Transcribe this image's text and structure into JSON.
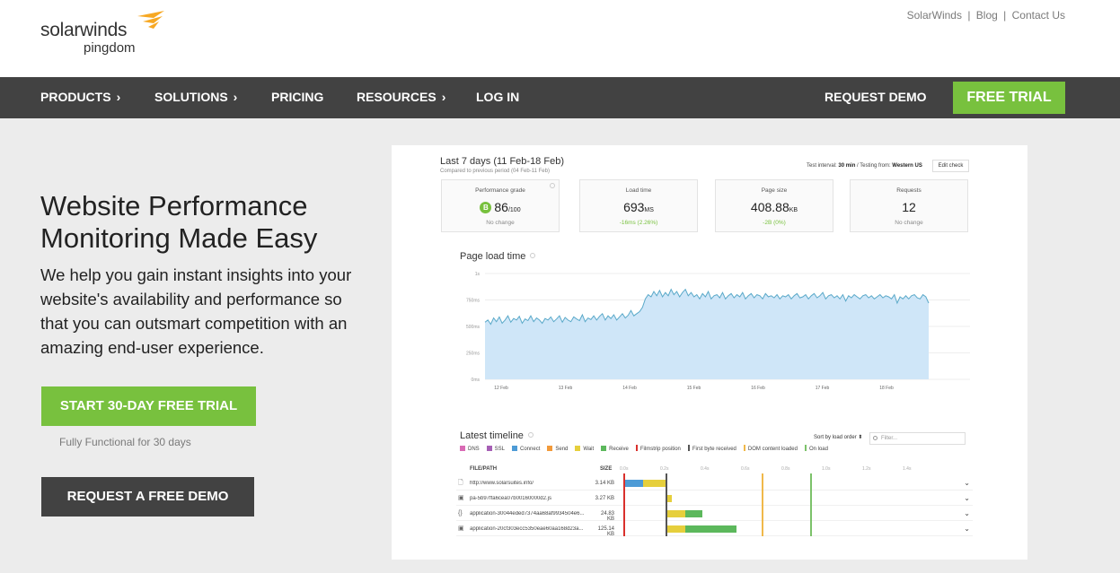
{
  "header": {
    "logo_word": "solarwinds",
    "logo_sub": "pingdom",
    "top_links": [
      "SolarWinds",
      "Blog",
      "Contact Us"
    ],
    "top_link_separator": "|"
  },
  "nav": {
    "items": [
      {
        "label": "PRODUCTS",
        "chevron": true
      },
      {
        "label": "SOLUTIONS",
        "chevron": true
      },
      {
        "label": "PRICING",
        "chevron": false
      },
      {
        "label": "RESOURCES",
        "chevron": true
      },
      {
        "label": "LOG IN",
        "chevron": false
      }
    ],
    "chevron_glyph": "›",
    "request_demo": "REQUEST DEMO",
    "free_trial": "FREE TRIAL"
  },
  "hero": {
    "title": "Website Performance Monitoring Made Easy",
    "description": "We help you gain instant insights into your website's availability and performance so that you can outsmart competition with an amazing end-user experience.",
    "cta_trial": "START 30-DAY FREE TRIAL",
    "cta_trial_sub": "Fully Functional for 30 days",
    "cta_demo": "REQUEST A FREE DEMO"
  },
  "colors": {
    "brand_green": "#78c13e",
    "nav_dark": "#424242",
    "logo_orange": "#f7a823",
    "chart_fill": "#cfe6f8",
    "chart_line": "#5aa9c9"
  },
  "dashboard": {
    "range": "Last 7 days (11 Feb-18 Feb)",
    "compare": "Compared to previous period (04 Feb-11 Feb)",
    "interval_prefix": "Test interval: ",
    "interval_value": "30 min",
    "testing_prefix": " / Testing from: ",
    "testing_value": "Western US",
    "edit_check": "Edit check",
    "cards": [
      {
        "label": "Performance grade",
        "grade": "B",
        "value": "86",
        "unit": "/100",
        "delta": "No change",
        "delta_good": false
      },
      {
        "label": "Load time",
        "value": "693",
        "unit": "MS",
        "delta": "-16ms (2.26%)",
        "delta_good": true
      },
      {
        "label": "Page size",
        "value": "408.88",
        "unit": "KB",
        "delta": "-2B (0%)",
        "delta_good": true
      },
      {
        "label": "Requests",
        "value": "12",
        "unit": "",
        "delta": "No change",
        "delta_good": false
      }
    ],
    "page_load_title": "Page load time",
    "timeline_title": "Latest timeline",
    "sort_label": "Sort by load order ⬍",
    "filter_placeholder": "Filter...",
    "legend": [
      {
        "label": "DNS",
        "color": "#d96bb5",
        "kind": "swatch"
      },
      {
        "label": "SSL",
        "color": "#a65fb5",
        "kind": "swatch"
      },
      {
        "label": "Connect",
        "color": "#4d9bd6",
        "kind": "swatch"
      },
      {
        "label": "Send",
        "color": "#f29a3a",
        "kind": "swatch"
      },
      {
        "label": "Wait",
        "color": "#e6cf3c",
        "kind": "swatch"
      },
      {
        "label": "Receive",
        "color": "#5cb85c",
        "kind": "swatch"
      },
      {
        "label": "Filmstrip position",
        "color": "#d9302c",
        "kind": "line"
      },
      {
        "label": "First byte received",
        "color": "#555555",
        "kind": "line"
      },
      {
        "label": "DOM content loaded",
        "color": "#f0b84a",
        "kind": "line"
      },
      {
        "label": "On load",
        "color": "#7cc26a",
        "kind": "line"
      }
    ],
    "table_headers": {
      "file": "FILE/PATH",
      "size": "SIZE"
    },
    "timeline_ticks": [
      "0.0s",
      "0.2s",
      "0.4s",
      "0.6s",
      "0.8s",
      "1.0s",
      "1.2s",
      "1.4s"
    ],
    "rows": [
      {
        "icon": "page-icon",
        "glyph": "🗋",
        "name": "http://www.solarsuites.info/",
        "size": "3.14 KB",
        "segments": [
          {
            "start": 0.0,
            "end": 0.07,
            "color": "#4d9bd6"
          },
          {
            "start": 0.07,
            "end": 0.15,
            "color": "#e6cf3c"
          }
        ]
      },
      {
        "icon": "image-icon",
        "glyph": "▣",
        "name": "pa-5b97ffa6cea07b00160000d2.js",
        "size": "3.27 KB",
        "segments": [
          {
            "start": 0.15,
            "end": 0.17,
            "color": "#e6cf3c"
          }
        ]
      },
      {
        "icon": "script-icon",
        "glyph": "{}",
        "name": "application-30044eded7374aa68af9934504e6...",
        "size": "24.83 KB",
        "segments": [
          {
            "start": 0.15,
            "end": 0.22,
            "color": "#e6cf3c"
          },
          {
            "start": 0.22,
            "end": 0.28,
            "color": "#5cb85c"
          }
        ]
      },
      {
        "icon": "image-icon",
        "glyph": "▣",
        "name": "application-20cf303ecc5350eae60aa168d23a...",
        "size": "125.14 KB",
        "segments": [
          {
            "start": 0.15,
            "end": 0.22,
            "color": "#e6cf3c"
          },
          {
            "start": 0.22,
            "end": 0.4,
            "color": "#5cb85c"
          }
        ]
      }
    ],
    "markers": [
      {
        "name": "filmstrip-marker",
        "at": 0.0,
        "color": "#d9302c"
      },
      {
        "name": "first-byte-marker",
        "at": 0.15,
        "color": "#555555"
      },
      {
        "name": "dom-loaded-marker",
        "at": 0.49,
        "color": "#f0b84a"
      },
      {
        "name": "on-load-marker",
        "at": 0.66,
        "color": "#7cc26a"
      }
    ]
  },
  "chart_data": {
    "type": "area",
    "title": "Page load time",
    "xlabel": "",
    "ylabel": "",
    "x_ticks": [
      "12 Feb",
      "13 Feb",
      "14 Feb",
      "15 Feb",
      "16 Feb",
      "17 Feb",
      "18 Feb"
    ],
    "y_ticks": [
      "0ms",
      "250ms",
      "500ms",
      "750ms",
      "1s"
    ],
    "ylim": [
      0,
      1000
    ],
    "grid": true,
    "series": [
      {
        "x_range": [
          "11 Feb",
          "18 Feb"
        ],
        "values": [
          540,
          560,
          520,
          580,
          545,
          590,
          530,
          560,
          600,
          540,
          575,
          560,
          595,
          530,
          570,
          555,
          600,
          545,
          580,
          560,
          530,
          575,
          560,
          590,
          545,
          570,
          600,
          540,
          585,
          560,
          545,
          590,
          570,
          555,
          610,
          545,
          580,
          565,
          600,
          560,
          595,
          620,
          560,
          600,
          575,
          610,
          560,
          590,
          620,
          580,
          605,
          650,
          600,
          620,
          640,
          680,
          760,
          800,
          780,
          830,
          790,
          840,
          780,
          820,
          790,
          850,
          800,
          830,
          780,
          820,
          850,
          790,
          820,
          780,
          800,
          760,
          810,
          780,
          830,
          760,
          790,
          800,
          770,
          820,
          760,
          790,
          810,
          770,
          800,
          780,
          820,
          760,
          790,
          810,
          770,
          800,
          790,
          760,
          810,
          780,
          790,
          770,
          800,
          760,
          790,
          780,
          800,
          760,
          790,
          810,
          770,
          780,
          800,
          760,
          790,
          810,
          770,
          790,
          820,
          760,
          790,
          800,
          770,
          790,
          760,
          800,
          740,
          790,
          770,
          800,
          780,
          760,
          790,
          800,
          770,
          790,
          760,
          780,
          800,
          770,
          790,
          780,
          760,
          800,
          720,
          780,
          760,
          790,
          760,
          790,
          800,
          770,
          760,
          800,
          780,
          720
        ]
      }
    ]
  }
}
